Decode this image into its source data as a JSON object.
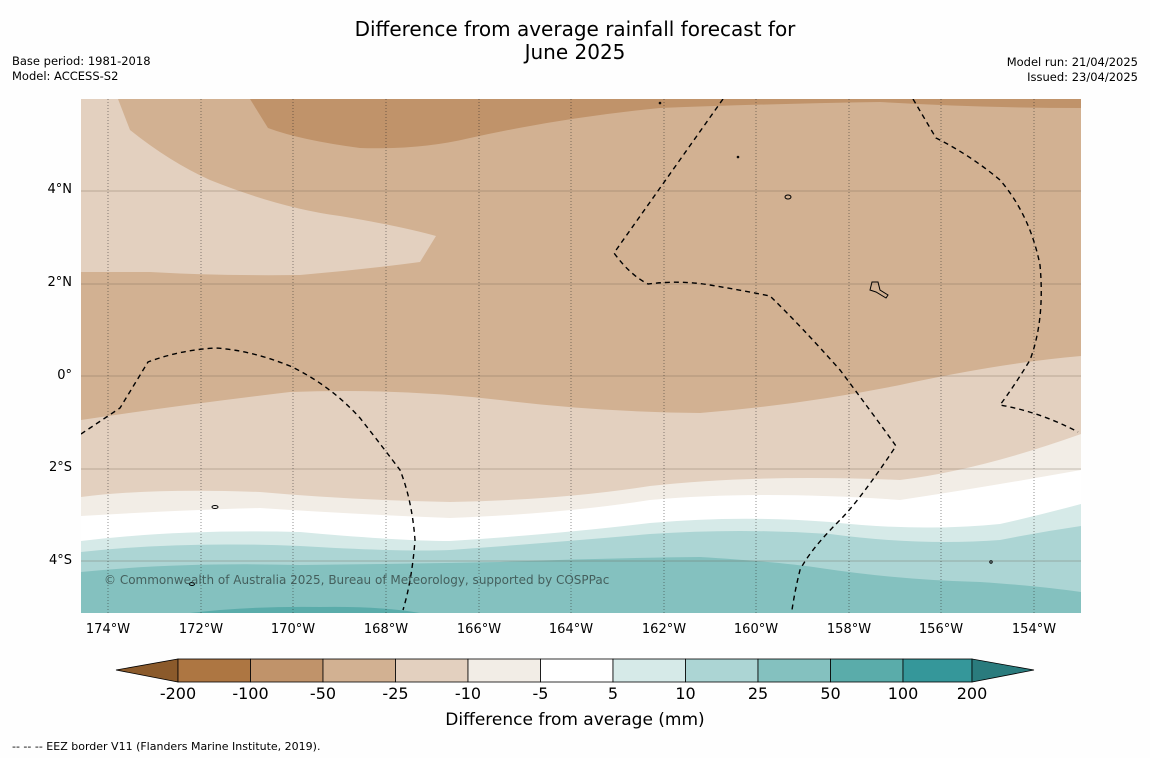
{
  "title_line1": "Difference from average rainfall forecast for",
  "title_line2": "June 2025",
  "meta_left": {
    "base_period": "Base period: 1981-2018",
    "model": "Model: ACCESS-S2"
  },
  "meta_right": {
    "model_run": "Model run: 21/04/2025",
    "issued": "Issued: 23/04/2025"
  },
  "copyright": "© Commonwealth of Australia 2025, Bureau of Meteorology, supported by COSPPac",
  "lat_labels": [
    "4°N",
    "2°N",
    "0°",
    "2°S",
    "4°S"
  ],
  "lon_labels": [
    "174°W",
    "172°W",
    "170°W",
    "168°W",
    "166°W",
    "164°W",
    "162°W",
    "160°W",
    "158°W",
    "156°W",
    "154°W"
  ],
  "colorbar": {
    "labels": [
      "-200",
      "-100",
      "-50",
      "-25",
      "-10",
      "-5",
      "5",
      "10",
      "25",
      "50",
      "100",
      "200"
    ],
    "colors": [
      "#8b5a2b",
      "#ad7642",
      "#c0936a",
      "#d2b192",
      "#e3d0bf",
      "#f2ede6",
      "#ffffff",
      "#d6eae8",
      "#acd5d4",
      "#84c1bf",
      "#5aacaa",
      "#35979a",
      "#2a7b7d"
    ],
    "title": "Difference from average (mm)"
  },
  "footer": "--  --  -- EEZ border V11 (Flanders Marine Institute, 2019)."
}
